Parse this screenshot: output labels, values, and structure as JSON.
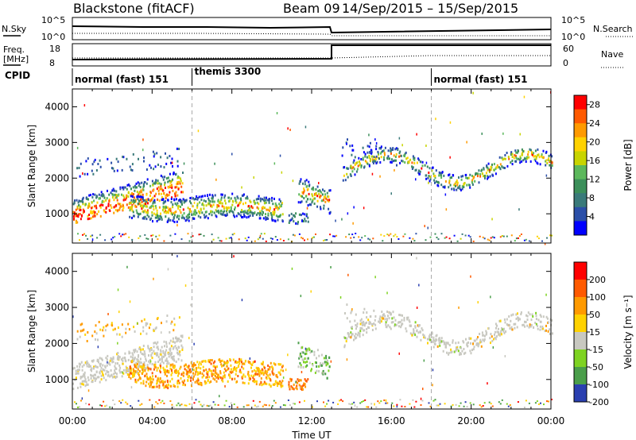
{
  "header": {
    "radar": "Blackstone (fitACF)",
    "beam": "Beam 09",
    "period": "14/Sep/2015 – 15/Sep/2015"
  },
  "top_panels": {
    "nsky_label": "N.Sky",
    "nsearch_label": "N.Search",
    "freq_label_1": "Freq.",
    "freq_label_2": "[MHz]",
    "nave_label": "Nave",
    "cpid_label": "CPID",
    "noise_ticks_left": [
      "10^5",
      "10^0"
    ],
    "noise_ticks_right": [
      "10^5",
      "10^0"
    ],
    "freq_ticks_left": [
      "18",
      "8"
    ],
    "freq_ticks_right": [
      "60",
      "0"
    ]
  },
  "modes": [
    {
      "label": "normal (fast) 151",
      "start_hour": 0
    },
    {
      "label": "themis 3300",
      "start_hour": 6
    },
    {
      "label": "normal (fast) 151",
      "start_hour": 18
    }
  ],
  "colors": {
    "power_scale": [
      "#0000ff",
      "#2b4fa8",
      "#3a7a7a",
      "#3c8f5a",
      "#5cb85c",
      "#c8d400",
      "#ffd200",
      "#ff9a00",
      "#ff5a00",
      "#ff0000"
    ],
    "velocity_scale": [
      "#2a3fb0",
      "#4a9e4a",
      "#7ed321",
      "#c8c8c0",
      "#ffd200",
      "#ff9a00",
      "#ff5a00",
      "#ff0000"
    ]
  },
  "chart_data": [
    {
      "type": "heatmap",
      "title": "",
      "ylabel": "Slant Range [km]",
      "xlabel": "Time UT",
      "xlim": [
        0,
        24
      ],
      "ylim": [
        180,
        4500
      ],
      "x_tick_labels": [
        "00:00",
        "04:00",
        "08:00",
        "12:00",
        "16:00",
        "20:00",
        "00:00"
      ],
      "y_tick_labels": [
        "1000",
        "2000",
        "3000",
        "4000"
      ],
      "y_ticks": [
        1000,
        2000,
        3000,
        4000
      ],
      "colorbar": {
        "label": "Power [dB]",
        "range": [
          0,
          30
        ],
        "tick_labels": [
          "4",
          "8",
          "12",
          "16",
          "20",
          "24",
          "28"
        ],
        "tick_values": [
          4,
          8,
          12,
          16,
          20,
          24,
          28
        ]
      },
      "vertical_markers_hours": [
        6,
        18
      ]
    },
    {
      "type": "heatmap",
      "title": "",
      "ylabel": "Slant Range [km]",
      "xlabel": "Time UT",
      "xlim": [
        0,
        24
      ],
      "ylim": [
        180,
        4500
      ],
      "x_tick_labels": [
        "00:00",
        "04:00",
        "08:00",
        "12:00",
        "16:00",
        "20:00",
        "00:00"
      ],
      "y_tick_labels": [
        "1000",
        "2000",
        "3000",
        "4000"
      ],
      "y_ticks": [
        1000,
        2000,
        3000,
        4000
      ],
      "colorbar": {
        "label": "Velocity [m s⁻¹]",
        "tick_labels": [
          "200",
          "100",
          "50",
          "15",
          "-15",
          "-50",
          "-100",
          "-200"
        ]
      },
      "vertical_markers_hours": [
        6,
        18
      ]
    }
  ],
  "x_axis_title": "Time UT"
}
